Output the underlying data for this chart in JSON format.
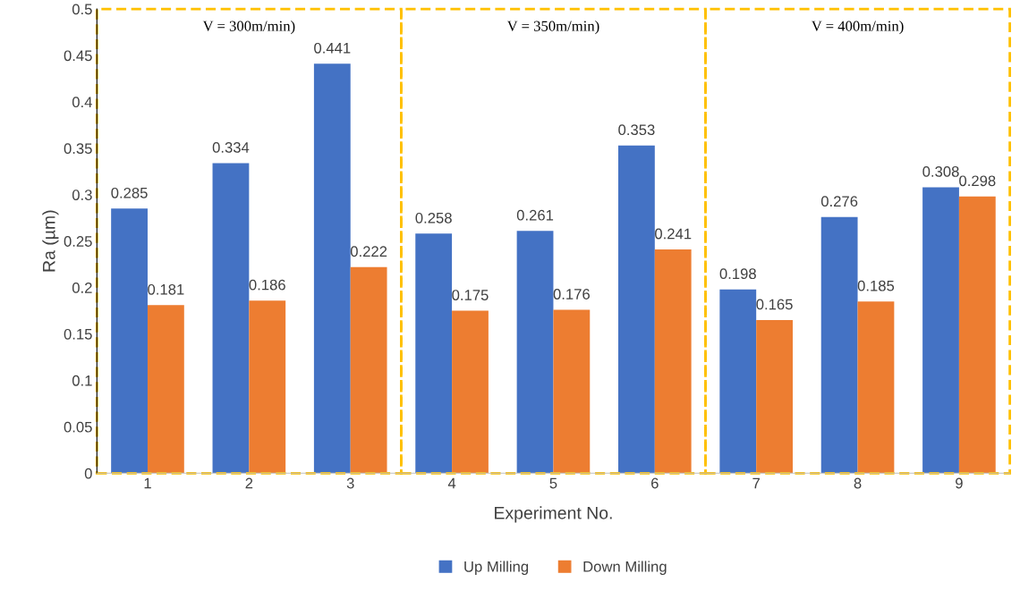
{
  "chart_data": {
    "type": "bar",
    "xlabel": "Experiment No.",
    "ylabel": "Ra (µm)",
    "categories": [
      "1",
      "2",
      "3",
      "4",
      "5",
      "6",
      "7",
      "8",
      "9"
    ],
    "series": [
      {
        "name": "Up Milling",
        "color": "#4472c4",
        "values": [
          0.285,
          0.334,
          0.441,
          0.258,
          0.261,
          0.353,
          0.198,
          0.276,
          0.308
        ]
      },
      {
        "name": "Down Milling",
        "color": "#ed7d31",
        "values": [
          0.181,
          0.186,
          0.222,
          0.175,
          0.176,
          0.241,
          0.165,
          0.185,
          0.298
        ]
      }
    ],
    "ylim": [
      0,
      0.5
    ],
    "yticks": [
      0,
      0.05,
      0.1,
      0.15,
      0.2,
      0.25,
      0.3,
      0.35,
      0.4,
      0.45,
      0.5
    ],
    "annotations": [
      "V = 300m/min)",
      "V = 350m/min)",
      "V = 400m/min)"
    ],
    "data_labels": true,
    "grid": false,
    "legend": "bottom"
  }
}
